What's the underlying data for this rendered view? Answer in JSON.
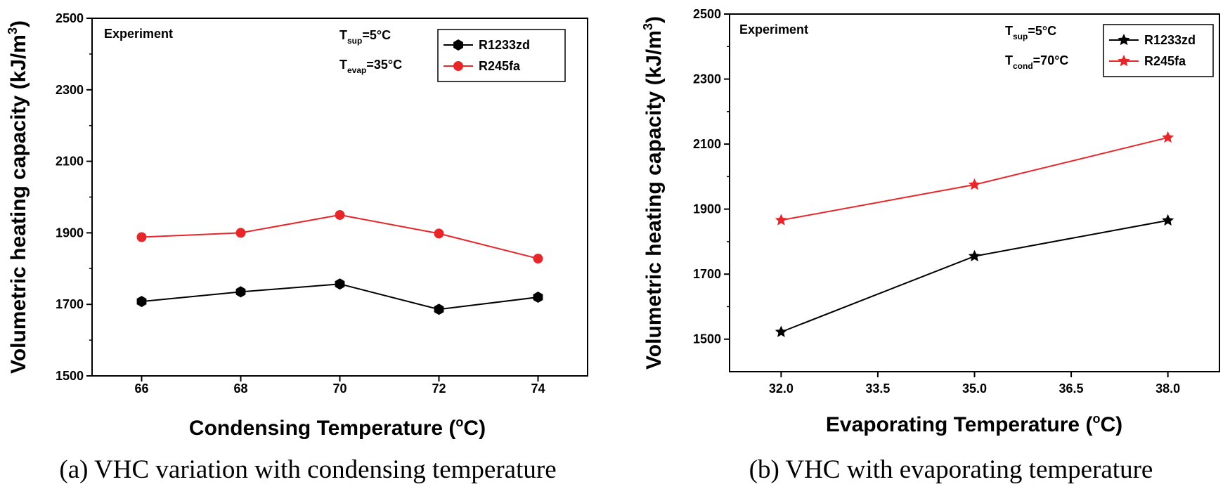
{
  "chart_data": [
    {
      "type": "line",
      "caption": "(a) VHC variation with condensing temperature",
      "annotation": "Experiment",
      "xlabel": "Condensing Temperature (",
      "xlabel_unit": "C)",
      "ylabel": "Volumetric heating capacity (kJ/m",
      "ylabel_exp": "3",
      "x": [
        66,
        68,
        70,
        72,
        74
      ],
      "x_ticks": [
        "66",
        "68",
        "70",
        "72",
        "74"
      ],
      "xlim": [
        65,
        75
      ],
      "ylim": [
        1500,
        2500
      ],
      "y_ticks": [
        "1500",
        "1700",
        "1900",
        "2100",
        "2300",
        "2500"
      ],
      "conditions": [
        {
          "T": "T",
          "sub": "sup",
          "rest": "=5°C"
        },
        {
          "T": "T",
          "sub": "evap",
          "rest": "=35°C"
        }
      ],
      "series": [
        {
          "name": "R1233zd",
          "color": "#000000",
          "marker": "hexagon",
          "values": [
            1708,
            1735,
            1757,
            1686,
            1720
          ]
        },
        {
          "name": "R245fa",
          "color": "#e8262a",
          "marker": "circle",
          "values": [
            1888,
            1900,
            1950,
            1898,
            1828
          ]
        }
      ],
      "legend_position": "top-right"
    },
    {
      "type": "line",
      "caption": "(b) VHC with evaporating temperature",
      "annotation": "Experiment",
      "xlabel": "Evaporating Temperature (",
      "xlabel_unit": "C)",
      "ylabel": "Volumetric heating capacity (kJ/m",
      "ylabel_exp": "3",
      "x": [
        32.0,
        35.0,
        38.0
      ],
      "x_ticks": [
        "32.0",
        "33.5",
        "35.0",
        "36.5",
        "38.0"
      ],
      "x_tick_values": [
        32.0,
        33.5,
        35.0,
        36.5,
        38.0
      ],
      "xlim": [
        31.2,
        38.8
      ],
      "ylim": [
        1400,
        2500
      ],
      "y_ticks": [
        "1500",
        "1700",
        "1900",
        "2100",
        "2300",
        "2500"
      ],
      "conditions": [
        {
          "T": "T",
          "sub": "sup",
          "rest": "=5°C"
        },
        {
          "T": "T",
          "sub": "cond",
          "rest": "=70°C"
        }
      ],
      "series": [
        {
          "name": "R1233zd",
          "color": "#000000",
          "marker": "star",
          "values": [
            1522,
            1755,
            1865
          ]
        },
        {
          "name": "R245fa",
          "color": "#e8262a",
          "marker": "star",
          "values": [
            1866,
            1975,
            2120
          ]
        }
      ],
      "legend_position": "top-right"
    }
  ]
}
